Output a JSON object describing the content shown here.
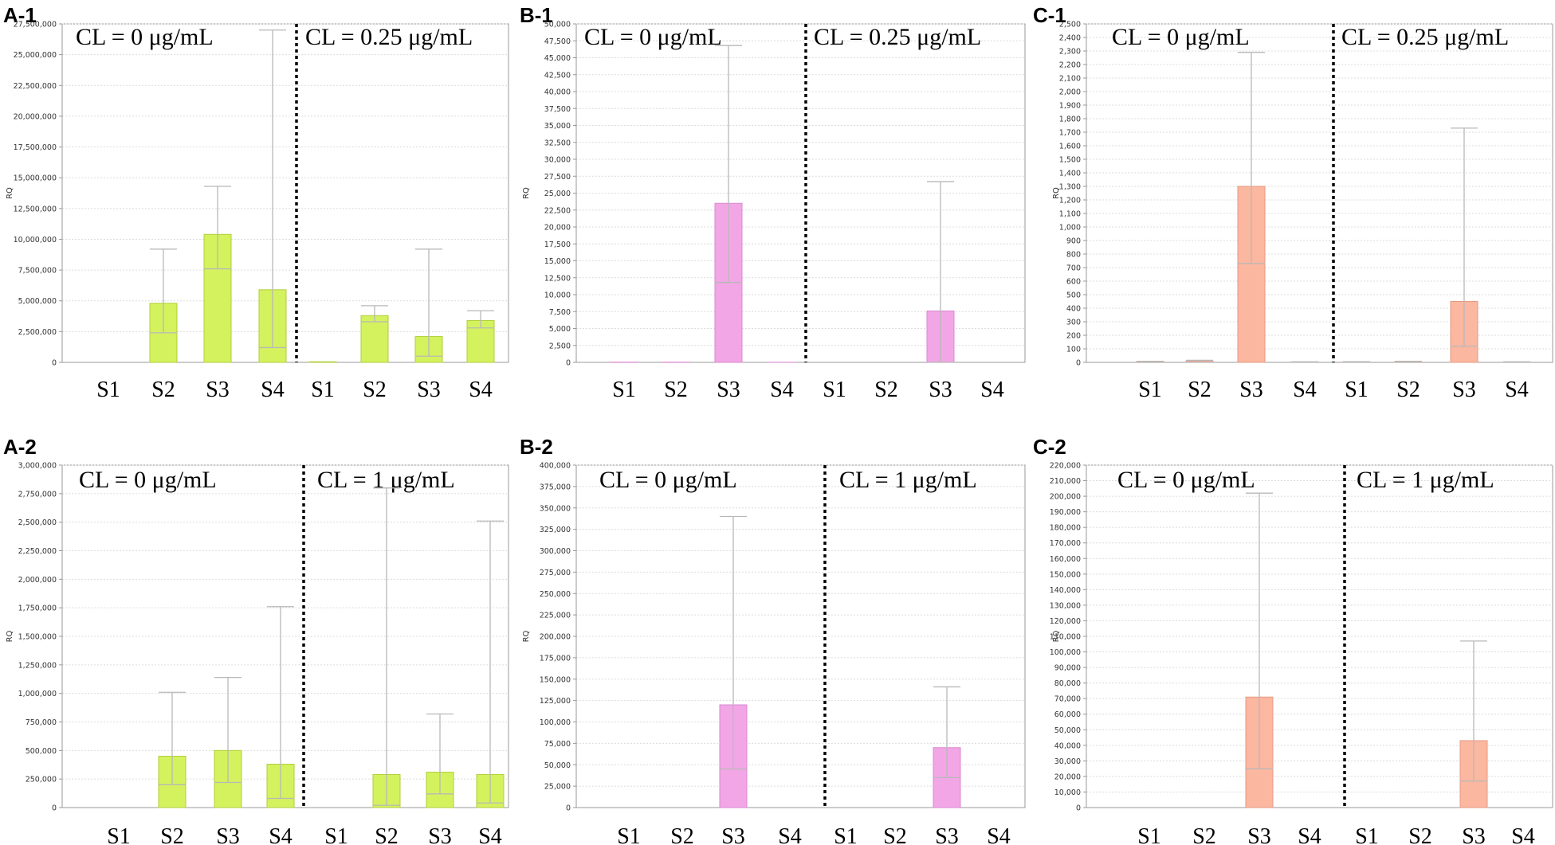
{
  "chart_data": [
    {
      "type": "bar",
      "panel": "A-1",
      "color": "#d4f25e",
      "edge": "#b0cf3a",
      "ylabel": "RQ",
      "ylim": [
        0,
        27500000
      ],
      "ystep": 2500000,
      "grid": true,
      "conditions": [
        "CL = 0 μg/mL",
        "CL = 0.25 μg/mL"
      ],
      "categories": [
        "S1",
        "S2",
        "S3",
        "S4",
        "S1",
        "S2",
        "S3",
        "S4"
      ],
      "yticks": [
        "0",
        "2,500,000",
        "5,000,000",
        "7,500,000",
        "10,000,000",
        "12,500,000",
        "15,000,000",
        "17,500,000",
        "20,000,000",
        "22,500,000",
        "25,000,000",
        "27,500,000"
      ],
      "values": [
        0,
        4800000,
        10400000,
        5900000,
        50000,
        3800000,
        2100000,
        3400000
      ],
      "err_low": [
        0,
        2400000,
        7600000,
        1200000,
        0,
        3300000,
        500000,
        2800000
      ],
      "err_high": [
        0,
        9200000,
        14300000,
        27000000,
        0,
        4600000,
        9200000,
        4200000
      ]
    },
    {
      "type": "bar",
      "panel": "B-1",
      "color": "#f2a6e6",
      "edge": "#d98ad0",
      "ylabel": "RQ",
      "ylim": [
        0,
        50000
      ],
      "ystep": 2500,
      "grid": true,
      "conditions": [
        "CL = 0 μg/mL",
        "CL = 0.25 μg/mL"
      ],
      "categories": [
        "S1",
        "S2",
        "S3",
        "S4",
        "S1",
        "S2",
        "S3",
        "S4"
      ],
      "yticks": [
        "0",
        "2,500",
        "5,000",
        "7,500",
        "10,000",
        "12,500",
        "15,000",
        "17,500",
        "20,000",
        "22,500",
        "25,000",
        "27,500",
        "30,000",
        "32,500",
        "35,000",
        "37,500",
        "40,000",
        "42,500",
        "45,000",
        "47,500",
        "50,000"
      ],
      "values": [
        40,
        40,
        23500,
        20,
        0,
        0,
        7600,
        0
      ],
      "err_low": [
        0,
        0,
        11800,
        0,
        0,
        0,
        0,
        0
      ],
      "err_high": [
        0,
        0,
        46800,
        0,
        0,
        0,
        26700,
        0
      ]
    },
    {
      "type": "bar",
      "panel": "C-1",
      "color": "#fbb7a0",
      "edge": "#e79a82",
      "ylabel": "RQ",
      "ylim": [
        0,
        2500
      ],
      "ystep": 100,
      "grid": true,
      "conditions": [
        "CL = 0 μg/mL",
        "CL = 0.25 μg/mL"
      ],
      "categories": [
        "S1",
        "S2",
        "S3",
        "S4",
        "S1",
        "S2",
        "S3",
        "S4"
      ],
      "yticks": [
        "0",
        "100",
        "200",
        "300",
        "400",
        "500",
        "600",
        "700",
        "800",
        "900",
        "1,000",
        "1,100",
        "1,200",
        "1,300",
        "1,400",
        "1,500",
        "1,600",
        "1,700",
        "1,800",
        "1,900",
        "2,000",
        "2,100",
        "2,200",
        "2,300",
        "2,400",
        "2,500"
      ],
      "values": [
        5,
        8,
        1300,
        2,
        3,
        5,
        450,
        2
      ],
      "err_low": [
        0,
        0,
        730,
        0,
        0,
        0,
        120,
        0
      ],
      "err_high": [
        8,
        15,
        2290,
        4,
        5,
        8,
        1730,
        4
      ]
    },
    {
      "type": "bar",
      "panel": "A-2",
      "color": "#d4f25e",
      "edge": "#b0cf3a",
      "ylabel": "RQ",
      "ylim": [
        0,
        3000000
      ],
      "ystep": 250000,
      "grid": true,
      "conditions": [
        "CL = 0 μg/mL",
        "CL = 1 μg/mL"
      ],
      "categories": [
        "S1",
        "S2",
        "S3",
        "S4",
        "S1",
        "S2",
        "S3",
        "S4"
      ],
      "yticks": [
        "0",
        "250,000",
        "500,000",
        "750,000",
        "1,000,000",
        "1,250,000",
        "1,500,000",
        "1,750,000",
        "2,000,000",
        "2,250,000",
        "2,500,000",
        "2,750,000",
        "3,000,000"
      ],
      "values": [
        0,
        450000,
        500000,
        380000,
        0,
        290000,
        310000,
        290000
      ],
      "err_low": [
        0,
        200000,
        220000,
        80000,
        0,
        20000,
        120000,
        40000
      ],
      "err_high": [
        0,
        1010000,
        1140000,
        1760000,
        0,
        2800000,
        820000,
        2510000
      ]
    },
    {
      "type": "bar",
      "panel": "B-2",
      "color": "#f2a6e6",
      "edge": "#d98ad0",
      "ylabel": "RQ",
      "ylim": [
        0,
        400000
      ],
      "ystep": 25000,
      "grid": true,
      "conditions": [
        "CL = 0 μg/mL",
        "CL = 1 μg/mL"
      ],
      "categories": [
        "S1",
        "S2",
        "S3",
        "S4",
        "S1",
        "S2",
        "S3",
        "S4"
      ],
      "yticks": [
        "0",
        "25,000",
        "50,000",
        "75,000",
        "100,000",
        "125,000",
        "150,000",
        "175,000",
        "200,000",
        "225,000",
        "250,000",
        "275,000",
        "300,000",
        "325,000",
        "350,000",
        "375,000",
        "400,000"
      ],
      "values": [
        0,
        0,
        120000,
        0,
        0,
        0,
        70000,
        0
      ],
      "err_low": [
        0,
        0,
        45000,
        0,
        0,
        0,
        35000,
        0
      ],
      "err_high": [
        0,
        0,
        340000,
        0,
        0,
        0,
        141000,
        0
      ]
    },
    {
      "type": "bar",
      "panel": "C-2",
      "color": "#fbb7a0",
      "edge": "#e79a82",
      "ylabel": "RQ",
      "ylim": [
        0,
        220000
      ],
      "ystep": 10000,
      "grid": true,
      "conditions": [
        "CL = 0 μg/mL",
        "CL = 1 μg/mL"
      ],
      "categories": [
        "S1",
        "S2",
        "S3",
        "S4",
        "S1",
        "S2",
        "S3",
        "S4"
      ],
      "yticks": [
        "0",
        "10,000",
        "20,000",
        "30,000",
        "40,000",
        "50,000",
        "60,000",
        "70,000",
        "80,000",
        "90,000",
        "100,000",
        "110,000",
        "120,000",
        "130,000",
        "140,000",
        "150,000",
        "160,000",
        "170,000",
        "180,000",
        "190,000",
        "200,000",
        "210,000",
        "220,000"
      ],
      "values": [
        0,
        0,
        71000,
        0,
        0,
        0,
        43000,
        0
      ],
      "err_low": [
        0,
        0,
        25000,
        0,
        0,
        0,
        17000,
        0
      ],
      "err_high": [
        0,
        0,
        202000,
        0,
        0,
        0,
        107000,
        0
      ]
    }
  ]
}
